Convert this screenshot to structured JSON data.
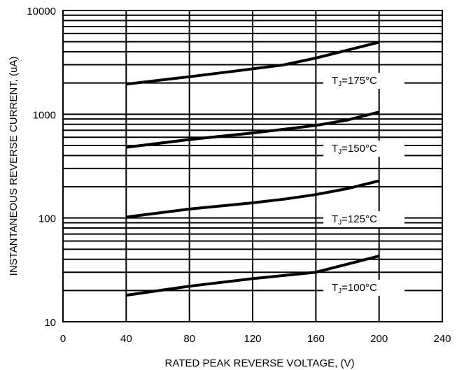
{
  "chart_data": {
    "type": "line",
    "title": "",
    "xlabel": "RATED PEAK REVERSE VOLTAGE, (V)",
    "ylabel": "INSTANTANEOUS REVERSE CURRENT, (uA)",
    "x_scale": "linear",
    "y_scale": "log",
    "xlim": [
      0,
      240
    ],
    "ylim": [
      10,
      10000
    ],
    "x_ticks": [
      0,
      40,
      80,
      120,
      160,
      200,
      240
    ],
    "x_tick_labels": [
      "0",
      "40",
      "80",
      "120",
      "160",
      "200",
      "240"
    ],
    "y_ticks": [
      10,
      100,
      1000,
      10000
    ],
    "y_tick_labels": [
      "10",
      "100",
      "1000",
      "10000"
    ],
    "grid": true,
    "series": [
      {
        "name": "TJ=175°C",
        "label_parts": [
          "T",
          "J",
          "=175°C"
        ],
        "x": [
          40,
          80,
          110,
          140,
          160,
          180,
          200
        ],
        "y": [
          1950,
          2300,
          2620,
          3000,
          3480,
          4150,
          4950
        ]
      },
      {
        "name": "TJ=150°C",
        "label_parts": [
          "T",
          "J",
          "=150°C"
        ],
        "x": [
          40,
          80,
          120,
          160,
          180,
          200
        ],
        "y": [
          480,
          570,
          660,
          780,
          880,
          1050
        ]
      },
      {
        "name": "TJ=125°C",
        "label_parts": [
          "T",
          "J",
          "=125°C"
        ],
        "x": [
          40,
          80,
          120,
          140,
          160,
          180,
          200
        ],
        "y": [
          102,
          122,
          140,
          152,
          168,
          192,
          228
        ]
      },
      {
        "name": "TJ=100°C",
        "label_parts": [
          "T",
          "J",
          "=100°C"
        ],
        "x": [
          40,
          80,
          120,
          160,
          200
        ],
        "y": [
          18,
          22,
          26,
          30,
          43
        ]
      }
    ],
    "line_color": "#000000"
  }
}
